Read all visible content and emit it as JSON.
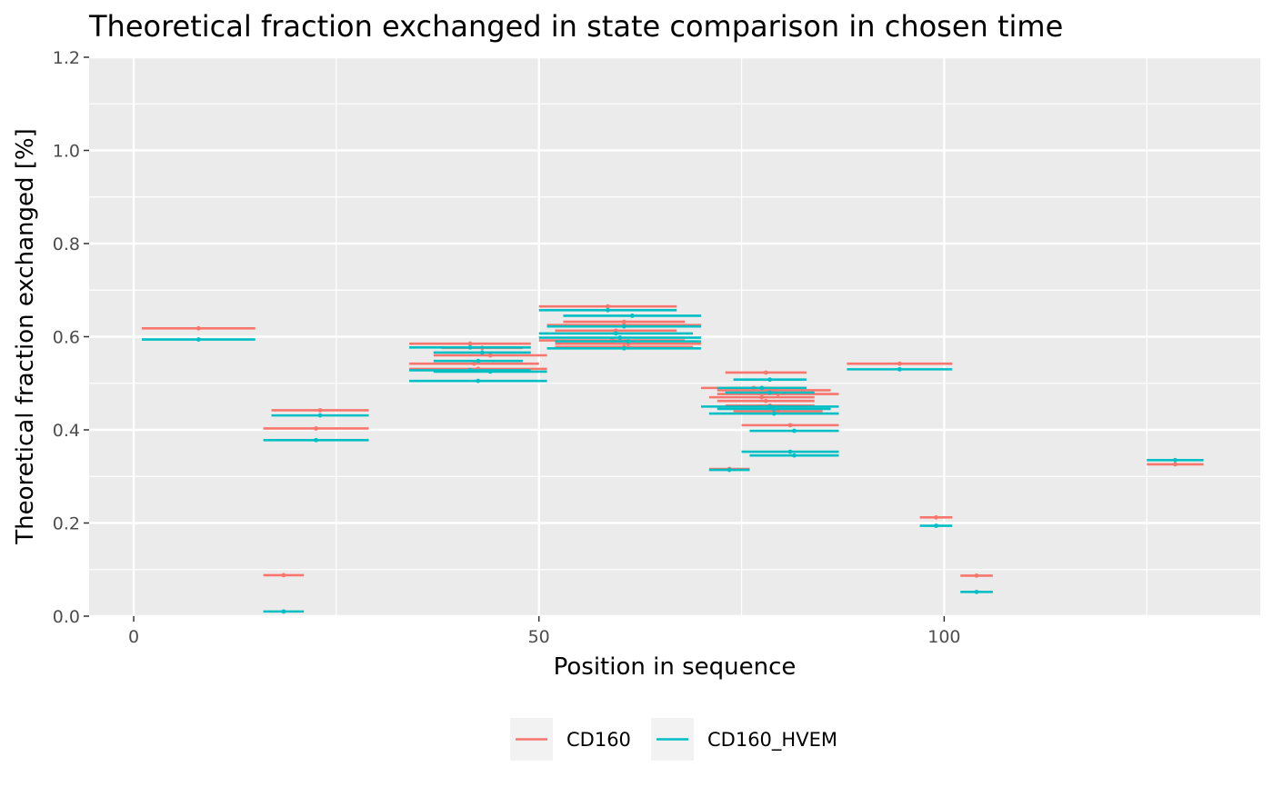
{
  "chart_data": {
    "type": "scatter",
    "title": "Theoretical fraction exchanged in state comparison in chosen time",
    "xlabel": "Position in sequence",
    "ylabel": "Theoretical fraction exchanged [%]",
    "xlim": [
      -5.5,
      139
    ],
    "ylim": [
      0,
      1.2
    ],
    "x_ticks": [
      0,
      50,
      100
    ],
    "y_ticks": [
      0.0,
      0.2,
      0.4,
      0.6,
      0.8,
      1.0,
      1.2
    ],
    "y_tick_labels": [
      "0.0",
      "0.2",
      "0.4",
      "0.6",
      "0.8",
      "1.0",
      "1.2"
    ],
    "grid": true,
    "legend_position": "bottom",
    "colors": {
      "CD160": "#F8766D",
      "CD160_HVEM": "#00BFC4",
      "panel": "#EBEBEB",
      "grid": "#FFFFFF"
    },
    "series": [
      {
        "name": "CD160",
        "color": "#F8766D",
        "segments": [
          {
            "start": 1,
            "end": 15,
            "y": 0.618
          },
          {
            "start": 16,
            "end": 21,
            "y": 0.088
          },
          {
            "start": 16,
            "end": 29,
            "y": 0.403
          },
          {
            "start": 17,
            "end": 29,
            "y": 0.442
          },
          {
            "start": 34,
            "end": 51,
            "y": 0.531
          },
          {
            "start": 34,
            "end": 50,
            "y": 0.542
          },
          {
            "start": 34,
            "end": 49,
            "y": 0.585
          },
          {
            "start": 37,
            "end": 51,
            "y": 0.56
          },
          {
            "start": 38,
            "end": 48,
            "y": 0.576
          },
          {
            "start": 50,
            "end": 68,
            "y": 0.592
          },
          {
            "start": 50,
            "end": 67,
            "y": 0.665
          },
          {
            "start": 51,
            "end": 70,
            "y": 0.625
          },
          {
            "start": 52,
            "end": 70,
            "y": 0.585
          },
          {
            "start": 52,
            "end": 69,
            "y": 0.578
          },
          {
            "start": 52,
            "end": 67,
            "y": 0.613
          },
          {
            "start": 53,
            "end": 68,
            "y": 0.632
          },
          {
            "start": 70,
            "end": 83,
            "y": 0.49
          },
          {
            "start": 71,
            "end": 84,
            "y": 0.47
          },
          {
            "start": 71,
            "end": 76,
            "y": 0.316
          },
          {
            "start": 72,
            "end": 86,
            "y": 0.485
          },
          {
            "start": 72,
            "end": 87,
            "y": 0.477
          },
          {
            "start": 72,
            "end": 84,
            "y": 0.462
          },
          {
            "start": 73,
            "end": 84,
            "y": 0.452
          },
          {
            "start": 73,
            "end": 83,
            "y": 0.523
          },
          {
            "start": 74,
            "end": 85,
            "y": 0.44
          },
          {
            "start": 75,
            "end": 87,
            "y": 0.41
          },
          {
            "start": 88,
            "end": 101,
            "y": 0.542
          },
          {
            "start": 97,
            "end": 101,
            "y": 0.212
          },
          {
            "start": 102,
            "end": 106,
            "y": 0.087
          },
          {
            "start": 125,
            "end": 132,
            "y": 0.326
          }
        ]
      },
      {
        "name": "CD160_HVEM",
        "color": "#00BFC4",
        "segments": [
          {
            "start": 1,
            "end": 15,
            "y": 0.594
          },
          {
            "start": 16,
            "end": 21,
            "y": 0.01
          },
          {
            "start": 16,
            "end": 29,
            "y": 0.378
          },
          {
            "start": 17,
            "end": 29,
            "y": 0.431
          },
          {
            "start": 34,
            "end": 51,
            "y": 0.505
          },
          {
            "start": 34,
            "end": 49,
            "y": 0.528
          },
          {
            "start": 34,
            "end": 49,
            "y": 0.577
          },
          {
            "start": 37,
            "end": 48,
            "y": 0.548
          },
          {
            "start": 37,
            "end": 49,
            "y": 0.566
          },
          {
            "start": 37,
            "end": 51,
            "y": 0.525
          },
          {
            "start": 50,
            "end": 67,
            "y": 0.657
          },
          {
            "start": 50,
            "end": 70,
            "y": 0.598
          },
          {
            "start": 50,
            "end": 69,
            "y": 0.607
          },
          {
            "start": 51,
            "end": 70,
            "y": 0.575
          },
          {
            "start": 51,
            "end": 70,
            "y": 0.622
          },
          {
            "start": 52,
            "end": 70,
            "y": 0.59
          },
          {
            "start": 53,
            "end": 70,
            "y": 0.645
          },
          {
            "start": 70,
            "end": 87,
            "y": 0.45
          },
          {
            "start": 71,
            "end": 76,
            "y": 0.314
          },
          {
            "start": 71,
            "end": 87,
            "y": 0.435
          },
          {
            "start": 72,
            "end": 86,
            "y": 0.445
          },
          {
            "start": 72,
            "end": 83,
            "y": 0.49
          },
          {
            "start": 73,
            "end": 84,
            "y": 0.48
          },
          {
            "start": 74,
            "end": 83,
            "y": 0.508
          },
          {
            "start": 75,
            "end": 87,
            "y": 0.353
          },
          {
            "start": 76,
            "end": 87,
            "y": 0.345
          },
          {
            "start": 76,
            "end": 87,
            "y": 0.398
          },
          {
            "start": 88,
            "end": 101,
            "y": 0.53
          },
          {
            "start": 97,
            "end": 101,
            "y": 0.194
          },
          {
            "start": 102,
            "end": 106,
            "y": 0.052
          },
          {
            "start": 125,
            "end": 132,
            "y": 0.335
          }
        ]
      }
    ]
  }
}
